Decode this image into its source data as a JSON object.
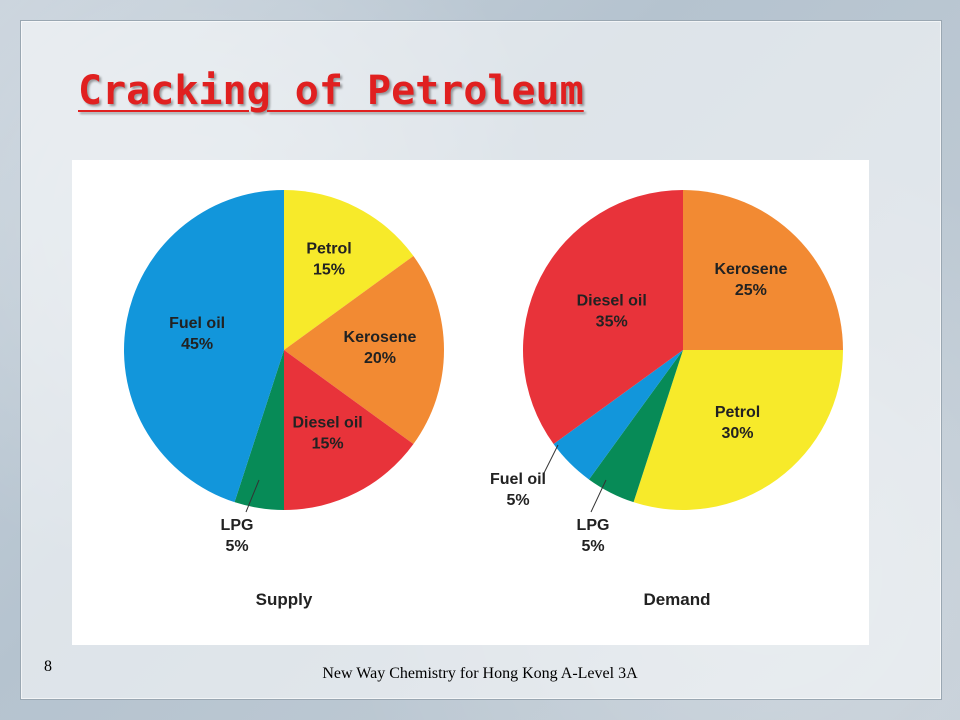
{
  "slide": {
    "title": "Cracking of Petroleum",
    "number": "8",
    "footer": "New Way Chemistry for Hong Kong A-Level 3A"
  },
  "colors": {
    "title": "#e02020",
    "Petrol": "#f7ea2a",
    "Kerosene": "#f28a33",
    "Diesel oil": "#e8333a",
    "LPG": "#078b57",
    "Fuel oil": "#1296db"
  },
  "chart_data": [
    {
      "type": "pie",
      "title": "Supply",
      "slices": [
        {
          "name": "Petrol",
          "value": 15,
          "label": "15%"
        },
        {
          "name": "Kerosene",
          "value": 20,
          "label": "20%"
        },
        {
          "name": "Diesel oil",
          "value": 15,
          "label": "15%"
        },
        {
          "name": "LPG",
          "value": 5,
          "label": "5%"
        },
        {
          "name": "Fuel oil",
          "value": 45,
          "label": "45%"
        }
      ]
    },
    {
      "type": "pie",
      "title": "Demand",
      "slices": [
        {
          "name": "Kerosene",
          "value": 25,
          "label": "25%"
        },
        {
          "name": "Petrol",
          "value": 30,
          "label": "30%"
        },
        {
          "name": "LPG",
          "value": 5,
          "label": "5%"
        },
        {
          "name": "Fuel oil",
          "value": 5,
          "label": "5%"
        },
        {
          "name": "Diesel oil",
          "value": 35,
          "label": "35%"
        }
      ]
    }
  ]
}
